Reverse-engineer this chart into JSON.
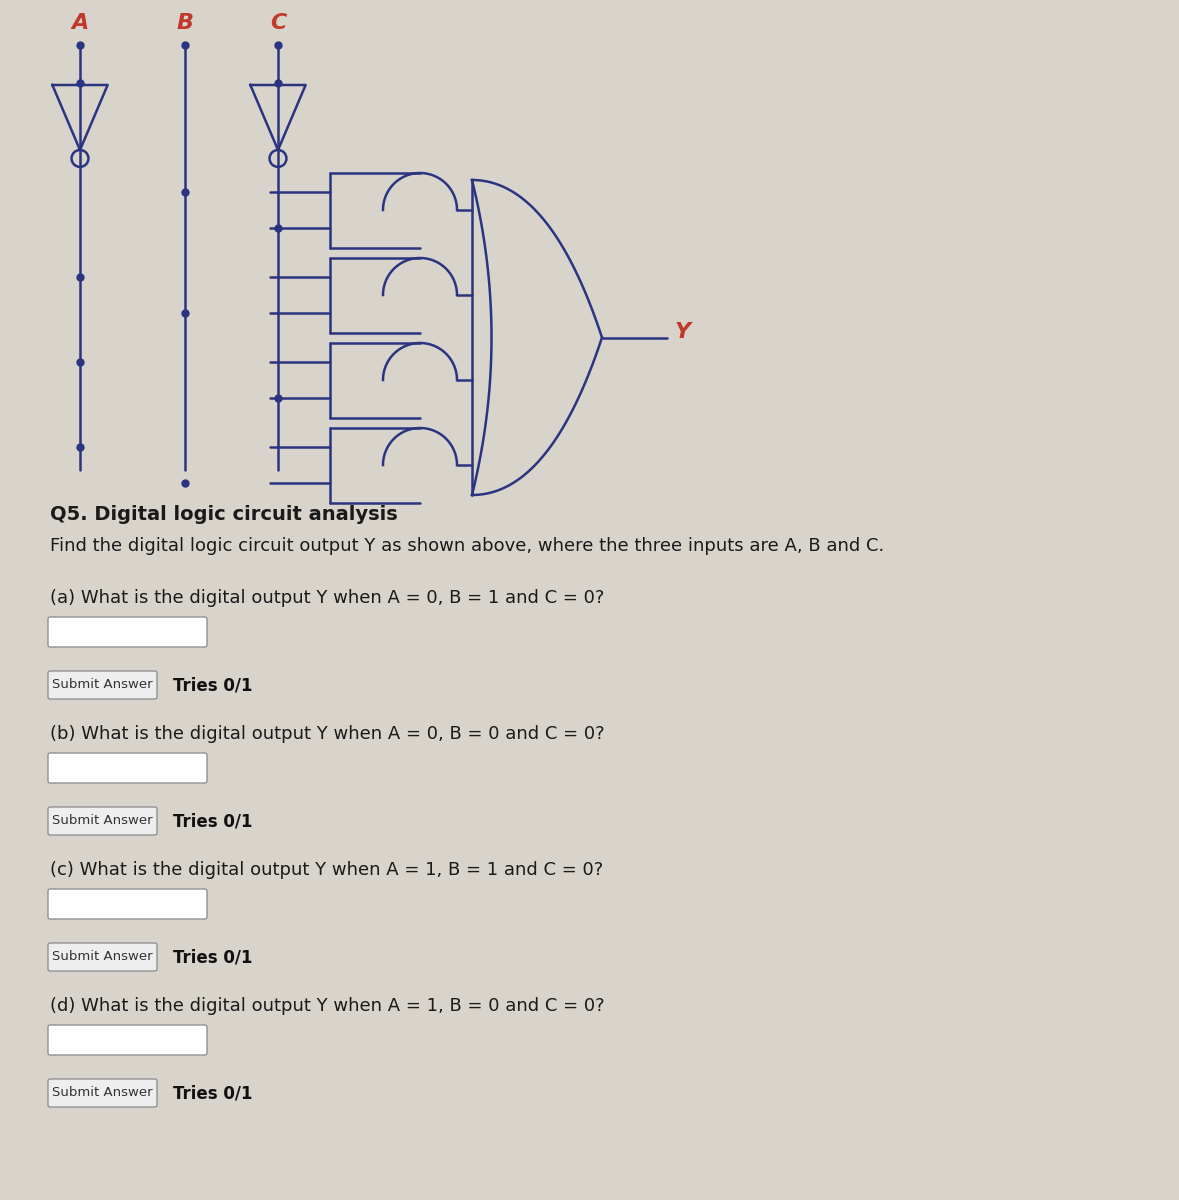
{
  "background_color": "#d8d4cc",
  "circuit_color": "#2b3480",
  "label_color": "#c0392b",
  "title_bold": "Q5. Digital logic circuit analysis",
  "title_normal": "Find the digital logic circuit output Y as shown above, where the three inputs are A, B and C.",
  "questions": [
    "(a) What is the digital output Y when A = 0, B = 1 and C = 0?",
    "(b) What is the digital output Y when A = 0, B = 0 and C = 0?",
    "(c) What is the digital output Y when A = 1, B = 1 and C = 0?",
    "(d) What is the digital output Y when A = 1, B = 0 and C = 0?"
  ],
  "submit_text": "Submit Answer",
  "tries_text": "Tries 0/1",
  "output_label": "Y",
  "lw": 1.8
}
